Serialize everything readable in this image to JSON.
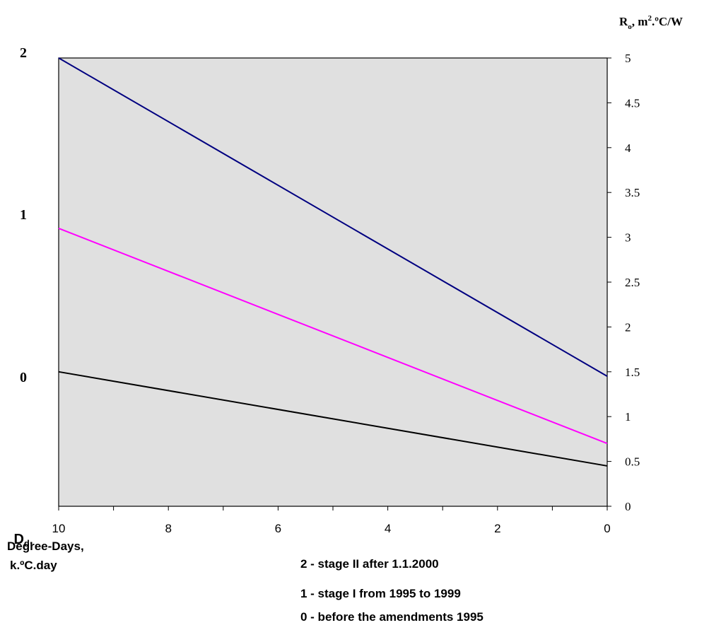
{
  "chart_data": {
    "type": "line",
    "x": [
      10,
      0
    ],
    "xlim": [
      10,
      0
    ],
    "xticks": [
      10,
      8,
      6,
      4,
      2,
      0
    ],
    "ylim": [
      0,
      5
    ],
    "yticks": [
      0,
      0.5,
      1,
      1.5,
      2,
      2.5,
      3,
      3.5,
      4,
      4.5,
      5
    ],
    "yaxis_position": "right",
    "xlabel_symbol": "D",
    "xlabel_subscript": "d",
    "xlabel_comma": ",",
    "xlabel_line2": "Degree-Days,",
    "xlabel_line3": "k.ºC.day",
    "ylabel_symbol": "R",
    "ylabel_subscript": "o",
    "ylabel_mid": ", m",
    "ylabel_sup": "2",
    "ylabel_end": ".ºC/W",
    "series": [
      {
        "name": "2",
        "values": [
          5.0,
          1.45
        ],
        "color": "#000080",
        "right_label": "2"
      },
      {
        "name": "1",
        "values": [
          3.1,
          0.7
        ],
        "color": "#ff00ff",
        "right_label": "1"
      },
      {
        "name": "0",
        "values": [
          1.5,
          0.45
        ],
        "color": "#000000",
        "right_label": "0"
      }
    ],
    "legend": [
      "2 - stage II after 1.1.2000",
      "1 - stage I from 1995 to 1999",
      "0 - before the amendments 1995"
    ],
    "plot_background": "#e0e0e0",
    "grid": false,
    "legend_placement": "bottom"
  }
}
